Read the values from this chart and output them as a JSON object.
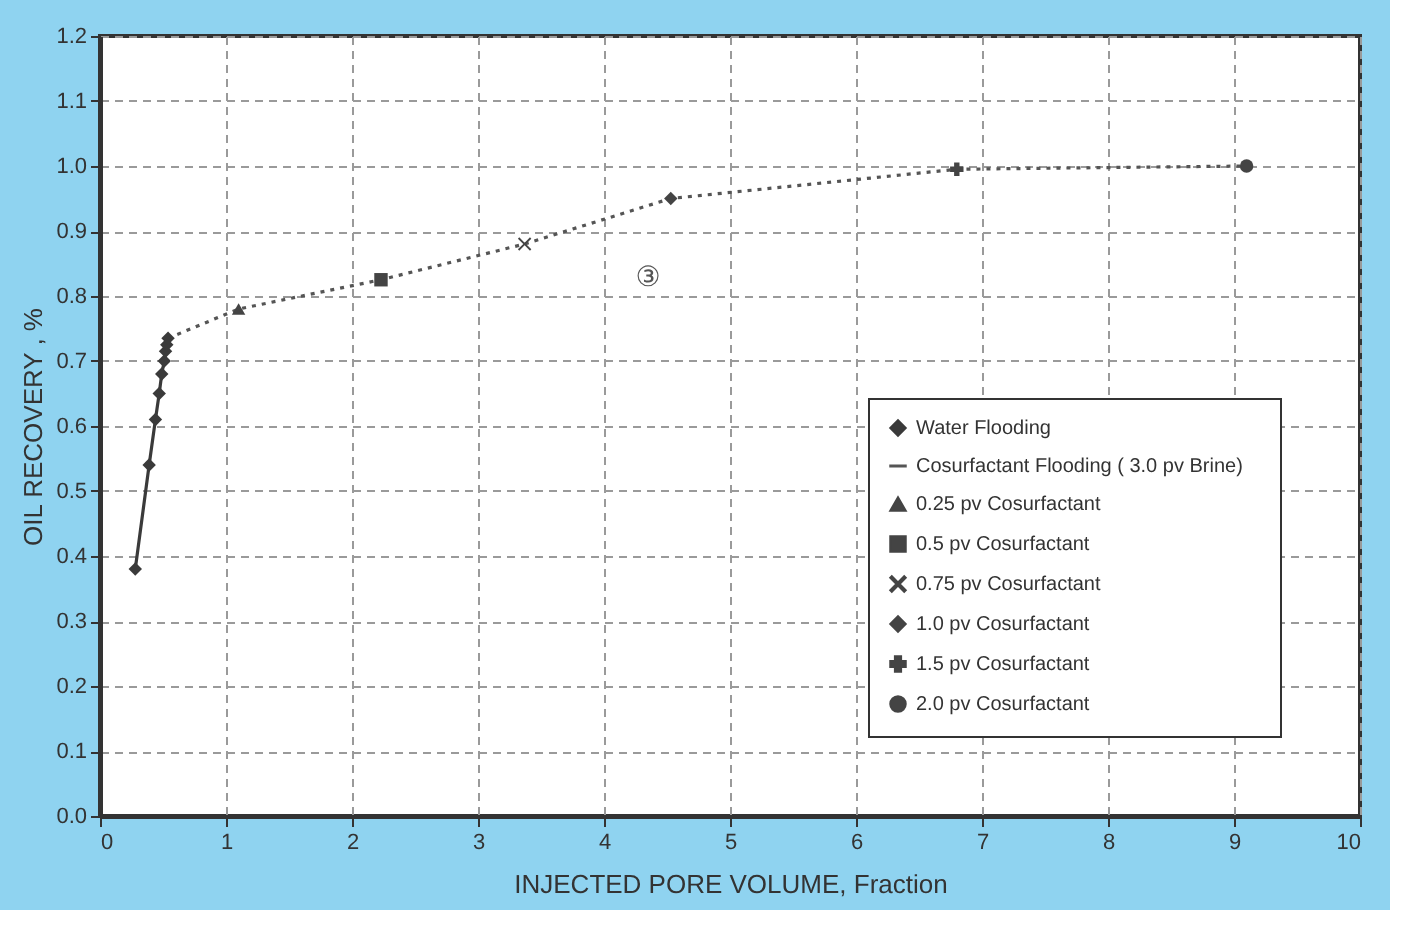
{
  "chart_data": {
    "type": "line",
    "xlabel": "INJECTED PORE VOLUME, Fraction",
    "ylabel": "OIL RECOVERY , %",
    "xlim": [
      0,
      10
    ],
    "xticks": [
      0,
      1,
      2,
      3,
      4,
      5,
      6,
      7,
      8,
      9,
      10
    ],
    "ylim": [
      0,
      1.2
    ],
    "yticks": [
      {
        "value": 0,
        "label": "0.0"
      },
      0.1,
      0.2,
      0.3,
      0.4,
      0.5,
      0.6,
      0.7,
      0.8,
      0.9,
      {
        "value": 1,
        "label": "1.0"
      },
      1.1,
      1.2
    ],
    "grid": true,
    "legend": "bottom right",
    "annotations": [
      "③"
    ],
    "series": [
      {
        "name": "Water Flooding",
        "marker": "diamond",
        "line_style": "solid",
        "color": "#3a3a3a",
        "x": [
          0.28,
          0.39,
          0.44,
          0.47,
          0.49,
          0.51,
          0.52,
          0.53,
          0.54
        ],
        "values": [
          0.38,
          0.54,
          0.61,
          0.65,
          0.68,
          0.7,
          0.715,
          0.725,
          0.735
        ]
      },
      {
        "name": "Cosurfactant  Flooding  ( 3.0 pv  Brine)",
        "marker": "none",
        "line_style": "dotted",
        "color": "#555555",
        "x": [
          0.54,
          1.1,
          2.23,
          3.37,
          4.53,
          6.8,
          9.1
        ],
        "values": [
          0.735,
          0.78,
          0.825,
          0.88,
          0.95,
          0.995,
          1.0
        ]
      },
      {
        "name": "0.25  pv  Cosurfactant",
        "type": "scatter",
        "marker": "triangle",
        "color": "#444444",
        "x": [
          1.1
        ],
        "values": [
          0.78
        ]
      },
      {
        "name": "0.5  pv  Cosurfactant",
        "type": "scatter",
        "marker": "square",
        "color": "#444444",
        "x": [
          2.23
        ],
        "values": [
          0.825
        ]
      },
      {
        "name": "0.75  pv  Cosurfactant",
        "type": "scatter",
        "marker": "cross",
        "color": "#444444",
        "x": [
          3.37
        ],
        "values": [
          0.88
        ]
      },
      {
        "name": "1.0  pv  Cosurfactant",
        "type": "scatter",
        "marker": "diamond",
        "color": "#444444",
        "x": [
          4.53
        ],
        "values": [
          0.95
        ]
      },
      {
        "name": "1.5  pv  Cosurfactant",
        "type": "scatter",
        "marker": "plus",
        "color": "#444444",
        "x": [
          6.8
        ],
        "values": [
          0.995
        ]
      },
      {
        "name": "2.0  pv  Cosurfactant",
        "type": "scatter",
        "marker": "circle",
        "color": "#444444",
        "x": [
          9.1
        ],
        "values": [
          1.0
        ]
      }
    ]
  }
}
